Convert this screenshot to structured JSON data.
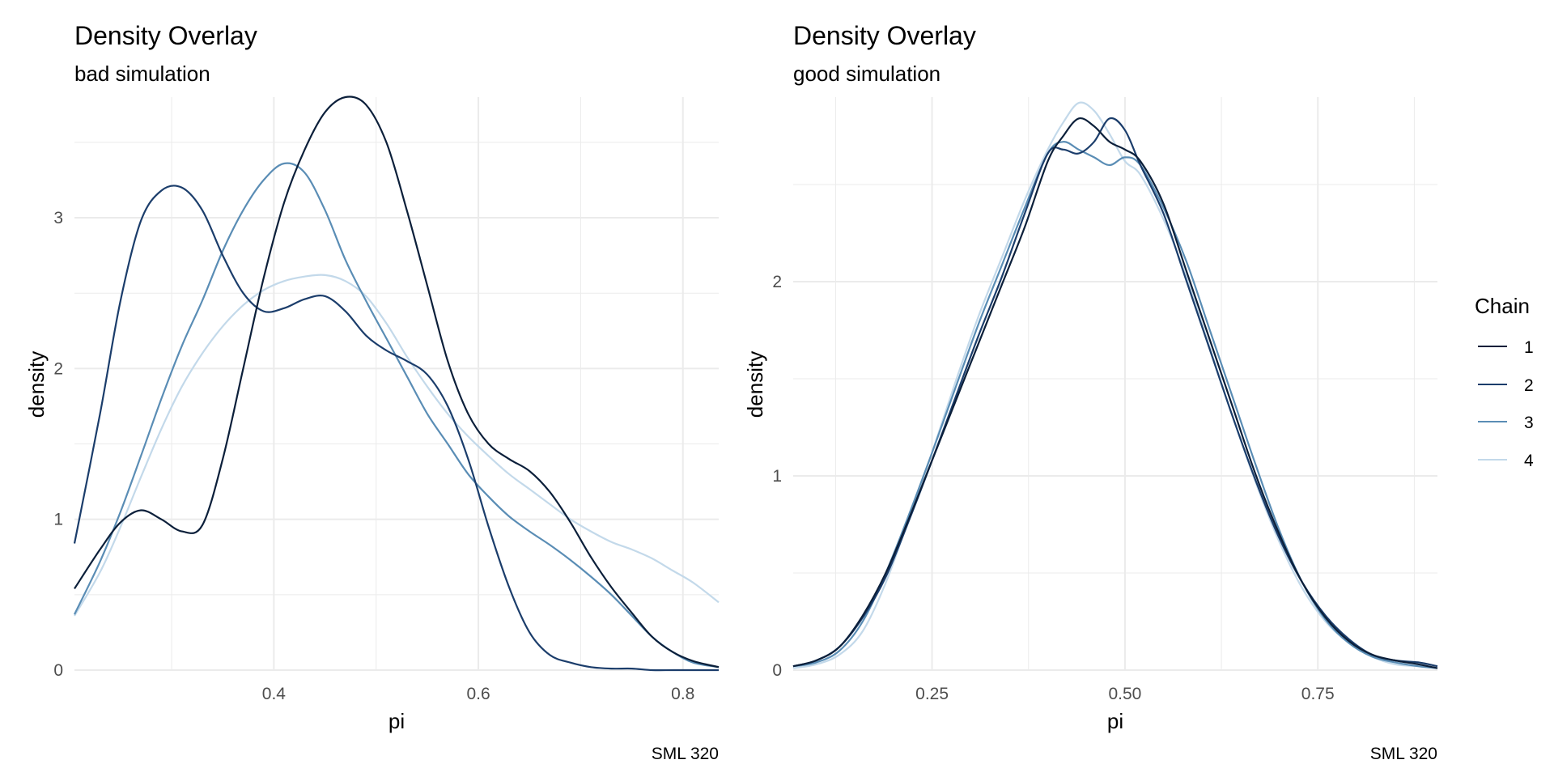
{
  "chart_data": [
    {
      "type": "line",
      "title": "Density Overlay",
      "subtitle": "bad simulation",
      "xlabel": "pi",
      "ylabel": "density",
      "caption": "SML 320",
      "xlim": [
        0.205,
        0.835
      ],
      "ylim": [
        0,
        3.8
      ],
      "xticks": [
        0.4,
        0.6,
        0.8
      ],
      "xtick_labels": [
        "0.4",
        "0.6",
        "0.8"
      ],
      "yticks": [
        0,
        1,
        2,
        3
      ],
      "ytick_labels": [
        "0",
        "1",
        "2",
        "3"
      ],
      "grid": true,
      "series": [
        {
          "name": "1",
          "x": [
            0.205,
            0.23,
            0.25,
            0.27,
            0.29,
            0.31,
            0.33,
            0.35,
            0.37,
            0.39,
            0.41,
            0.43,
            0.45,
            0.47,
            0.49,
            0.51,
            0.53,
            0.55,
            0.57,
            0.59,
            0.61,
            0.63,
            0.65,
            0.67,
            0.69,
            0.71,
            0.73,
            0.75,
            0.77,
            0.79,
            0.81,
            0.835
          ],
          "y": [
            0.54,
            0.8,
            0.98,
            1.06,
            1.0,
            0.92,
            0.96,
            1.4,
            2.0,
            2.6,
            3.1,
            3.45,
            3.7,
            3.8,
            3.75,
            3.5,
            3.05,
            2.55,
            2.05,
            1.7,
            1.5,
            1.4,
            1.32,
            1.18,
            0.98,
            0.75,
            0.55,
            0.38,
            0.22,
            0.12,
            0.06,
            0.02
          ]
        },
        {
          "name": "2",
          "x": [
            0.205,
            0.23,
            0.25,
            0.27,
            0.29,
            0.31,
            0.33,
            0.35,
            0.37,
            0.39,
            0.41,
            0.43,
            0.45,
            0.47,
            0.49,
            0.51,
            0.53,
            0.55,
            0.57,
            0.59,
            0.61,
            0.63,
            0.65,
            0.67,
            0.69,
            0.71,
            0.73,
            0.75,
            0.77,
            0.79,
            0.81,
            0.835
          ],
          "y": [
            0.84,
            1.7,
            2.45,
            2.98,
            3.18,
            3.2,
            3.05,
            2.75,
            2.5,
            2.38,
            2.4,
            2.46,
            2.48,
            2.38,
            2.22,
            2.12,
            2.05,
            1.96,
            1.75,
            1.4,
            0.95,
            0.55,
            0.25,
            0.1,
            0.05,
            0.02,
            0.01,
            0.01,
            0.0,
            0.0,
            0.0,
            0.0
          ]
        },
        {
          "name": "3",
          "x": [
            0.205,
            0.23,
            0.25,
            0.27,
            0.29,
            0.31,
            0.33,
            0.35,
            0.37,
            0.39,
            0.41,
            0.43,
            0.45,
            0.47,
            0.49,
            0.51,
            0.53,
            0.55,
            0.57,
            0.59,
            0.61,
            0.63,
            0.65,
            0.67,
            0.69,
            0.71,
            0.73,
            0.75,
            0.77,
            0.79,
            0.81,
            0.835
          ],
          "y": [
            0.37,
            0.72,
            1.05,
            1.42,
            1.8,
            2.15,
            2.45,
            2.78,
            3.05,
            3.25,
            3.36,
            3.3,
            3.05,
            2.72,
            2.45,
            2.2,
            1.95,
            1.7,
            1.5,
            1.3,
            1.15,
            1.02,
            0.92,
            0.83,
            0.73,
            0.62,
            0.5,
            0.36,
            0.22,
            0.12,
            0.05,
            0.02
          ]
        },
        {
          "name": "4",
          "x": [
            0.205,
            0.23,
            0.25,
            0.27,
            0.29,
            0.31,
            0.33,
            0.35,
            0.37,
            0.39,
            0.41,
            0.43,
            0.45,
            0.47,
            0.49,
            0.51,
            0.53,
            0.55,
            0.57,
            0.59,
            0.61,
            0.63,
            0.65,
            0.67,
            0.69,
            0.71,
            0.73,
            0.75,
            0.77,
            0.79,
            0.81,
            0.835
          ],
          "y": [
            0.36,
            0.65,
            0.95,
            1.28,
            1.6,
            1.88,
            2.1,
            2.28,
            2.42,
            2.52,
            2.58,
            2.61,
            2.62,
            2.58,
            2.48,
            2.3,
            2.08,
            1.88,
            1.7,
            1.55,
            1.42,
            1.3,
            1.2,
            1.1,
            1.0,
            0.92,
            0.85,
            0.8,
            0.74,
            0.66,
            0.58,
            0.45
          ]
        }
      ]
    },
    {
      "type": "line",
      "title": "Density Overlay",
      "subtitle": "good simulation",
      "xlabel": "pi",
      "ylabel": "density",
      "caption": "SML 320",
      "xlim": [
        0.07,
        0.905
      ],
      "ylim": [
        0,
        2.95
      ],
      "xticks": [
        0.25,
        0.5,
        0.75
      ],
      "xtick_labels": [
        "0.25",
        "0.50",
        "0.75"
      ],
      "yticks": [
        0,
        1,
        2
      ],
      "ytick_labels": [
        "0",
        "1",
        "2"
      ],
      "grid": true,
      "series": [
        {
          "name": "1",
          "x": [
            0.07,
            0.1,
            0.13,
            0.16,
            0.19,
            0.22,
            0.25,
            0.28,
            0.31,
            0.34,
            0.37,
            0.4,
            0.42,
            0.44,
            0.46,
            0.48,
            0.5,
            0.52,
            0.55,
            0.58,
            0.61,
            0.64,
            0.67,
            0.7,
            0.73,
            0.76,
            0.79,
            0.82,
            0.85,
            0.88,
            0.905
          ],
          "y": [
            0.02,
            0.05,
            0.12,
            0.28,
            0.5,
            0.78,
            1.08,
            1.38,
            1.68,
            1.98,
            2.28,
            2.62,
            2.75,
            2.84,
            2.8,
            2.72,
            2.68,
            2.62,
            2.4,
            2.05,
            1.7,
            1.35,
            1.0,
            0.7,
            0.45,
            0.27,
            0.15,
            0.08,
            0.05,
            0.03,
            0.01
          ]
        },
        {
          "name": "2",
          "x": [
            0.07,
            0.1,
            0.13,
            0.16,
            0.19,
            0.22,
            0.25,
            0.28,
            0.31,
            0.34,
            0.37,
            0.4,
            0.42,
            0.44,
            0.46,
            0.48,
            0.5,
            0.52,
            0.55,
            0.58,
            0.61,
            0.64,
            0.67,
            0.7,
            0.73,
            0.76,
            0.79,
            0.82,
            0.85,
            0.88,
            0.905
          ],
          "y": [
            0.02,
            0.05,
            0.12,
            0.27,
            0.48,
            0.77,
            1.08,
            1.4,
            1.72,
            2.02,
            2.35,
            2.66,
            2.68,
            2.66,
            2.72,
            2.84,
            2.78,
            2.6,
            2.35,
            2.0,
            1.65,
            1.3,
            0.97,
            0.68,
            0.45,
            0.28,
            0.16,
            0.08,
            0.05,
            0.04,
            0.02
          ]
        },
        {
          "name": "3",
          "x": [
            0.07,
            0.1,
            0.13,
            0.16,
            0.19,
            0.22,
            0.25,
            0.28,
            0.31,
            0.34,
            0.37,
            0.4,
            0.42,
            0.44,
            0.46,
            0.48,
            0.5,
            0.52,
            0.55,
            0.58,
            0.61,
            0.64,
            0.67,
            0.7,
            0.73,
            0.76,
            0.79,
            0.82,
            0.85,
            0.88,
            0.905
          ],
          "y": [
            0.02,
            0.04,
            0.1,
            0.25,
            0.5,
            0.8,
            1.12,
            1.45,
            1.78,
            2.08,
            2.38,
            2.66,
            2.72,
            2.68,
            2.64,
            2.6,
            2.64,
            2.6,
            2.38,
            2.1,
            1.75,
            1.4,
            1.05,
            0.72,
            0.45,
            0.26,
            0.14,
            0.07,
            0.04,
            0.02,
            0.01
          ]
        },
        {
          "name": "4",
          "x": [
            0.07,
            0.1,
            0.13,
            0.16,
            0.19,
            0.22,
            0.25,
            0.28,
            0.31,
            0.34,
            0.37,
            0.4,
            0.42,
            0.44,
            0.46,
            0.48,
            0.5,
            0.52,
            0.55,
            0.58,
            0.61,
            0.64,
            0.67,
            0.7,
            0.73,
            0.76,
            0.79,
            0.82,
            0.85,
            0.88,
            0.905
          ],
          "y": [
            0.01,
            0.03,
            0.08,
            0.2,
            0.45,
            0.78,
            1.12,
            1.48,
            1.82,
            2.12,
            2.42,
            2.68,
            2.82,
            2.92,
            2.88,
            2.76,
            2.62,
            2.55,
            2.32,
            2.02,
            1.66,
            1.3,
            0.96,
            0.66,
            0.42,
            0.25,
            0.14,
            0.07,
            0.03,
            0.02,
            0.01
          ]
        }
      ]
    }
  ],
  "legend": {
    "title": "Chain",
    "placement": "right",
    "entries": [
      {
        "label": "1",
        "color": "#0b1f3a"
      },
      {
        "label": "2",
        "color": "#1b3d6b"
      },
      {
        "label": "3",
        "color": "#5a8db5"
      },
      {
        "label": "4",
        "color": "#c3d9ea"
      }
    ]
  },
  "colors": {
    "grid": "#ebebeb",
    "text": "#000000",
    "axis_text": "#4d4d4d"
  }
}
